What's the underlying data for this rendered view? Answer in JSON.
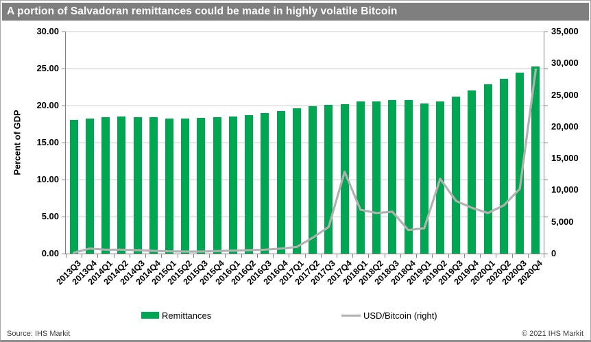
{
  "title": "A portion of Salvadoran remittances could be made in highly volatile Bitcoin",
  "colors": {
    "title_bg": "#7f7f7f",
    "title_fg": "#ffffff",
    "bar_green": "#00a651",
    "line_gray": "#b1b1b1",
    "grid": "#c9c9c9",
    "axis": "#808080"
  },
  "legend": [
    {
      "label": "Remittances",
      "type": "bar"
    },
    {
      "label": "USD/Bitcoin (right)",
      "type": "line"
    }
  ],
  "footer": {
    "source": "Source: IHS Markit",
    "copyright": "© 2021  IHS Markit"
  },
  "chart_data": {
    "type": "bar",
    "title": "A portion of Salvadoran remittances could be made in highly volatile Bitcoin",
    "categories": [
      "2013Q3",
      "2013Q4",
      "2014Q1",
      "2014Q2",
      "2014Q3",
      "2014Q4",
      "2015Q1",
      "2015Q2",
      "2015Q3",
      "2015Q4",
      "2016Q1",
      "2016Q2",
      "2016Q3",
      "2016Q4",
      "2017Q1",
      "2017Q2",
      "2017Q3",
      "2017Q4",
      "2018Q1",
      "2018Q2",
      "2018Q3",
      "2018Q4",
      "2019Q1",
      "2019Q2",
      "2019Q3",
      "2019Q4",
      "2020Q1",
      "2020Q2",
      "2020Q3",
      "2020Q4"
    ],
    "series": [
      {
        "name": "Remittances",
        "type": "bar",
        "axis": "left",
        "values": [
          18.1,
          18.2,
          18.4,
          18.5,
          18.4,
          18.4,
          18.2,
          18.2,
          18.3,
          18.4,
          18.5,
          18.7,
          19.0,
          19.3,
          19.6,
          19.9,
          20.1,
          20.2,
          20.6,
          20.6,
          20.7,
          20.7,
          20.3,
          20.6,
          21.2,
          22.0,
          22.9,
          23.6,
          24.4,
          25.3
        ]
      },
      {
        "name": "USD/Bitcoin (right)",
        "type": "line",
        "axis": "right",
        "values": [
          130,
          800,
          620,
          620,
          540,
          430,
          360,
          320,
          320,
          400,
          470,
          540,
          620,
          790,
          1050,
          2500,
          4200,
          12900,
          6900,
          6400,
          6600,
          3700,
          4000,
          11800,
          8300,
          7200,
          6400,
          7600,
          10200,
          29000
        ]
      }
    ],
    "left_axis": {
      "label": "Percent of GDP",
      "min": 0,
      "max": 30,
      "step": 5,
      "tick_labels": [
        "0.00",
        "5.00",
        "10.00",
        "15.00",
        "20.00",
        "25.00",
        "30.00"
      ]
    },
    "right_axis": {
      "label": "",
      "min": 0,
      "max": 35000,
      "step": 5000,
      "tick_labels": [
        "0",
        "5,000",
        "10,000",
        "15,000",
        "20,000",
        "25,000",
        "30,000",
        "35,000"
      ]
    },
    "grid": true,
    "legend_position": "bottom"
  }
}
